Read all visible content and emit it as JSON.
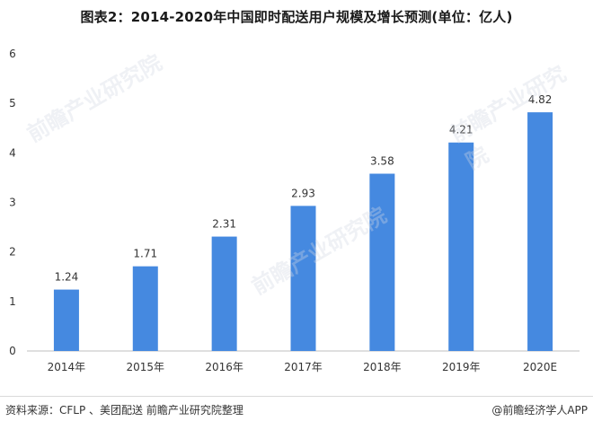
{
  "colors": {
    "bar": "#4589e0",
    "axis": "#bfbfbf",
    "text": "#333333"
  },
  "chart_data": {
    "type": "bar",
    "title": "图表2：2014-2020年中国即时配送用户规模及增长预测(单位：亿人)",
    "categories": [
      "2014年",
      "2015年",
      "2016年",
      "2017年",
      "2018年",
      "2019年",
      "2020E"
    ],
    "values": [
      1.24,
      1.71,
      2.31,
      2.93,
      3.58,
      4.21,
      4.82
    ],
    "value_labels": [
      "1.24",
      "1.71",
      "2.31",
      "2.93",
      "3.58",
      "4.21",
      "4.82"
    ],
    "ylim": [
      0,
      6
    ],
    "yticks": [
      0,
      1,
      2,
      3,
      4,
      5,
      6
    ],
    "grid": false,
    "xlabel": "",
    "ylabel": ""
  },
  "footer": {
    "source": "资料来源：CFLP 、美团配送  前瞻产业研究院整理",
    "brand": "@前瞻经济学人APP"
  },
  "watermark": "前瞻产业研究院"
}
